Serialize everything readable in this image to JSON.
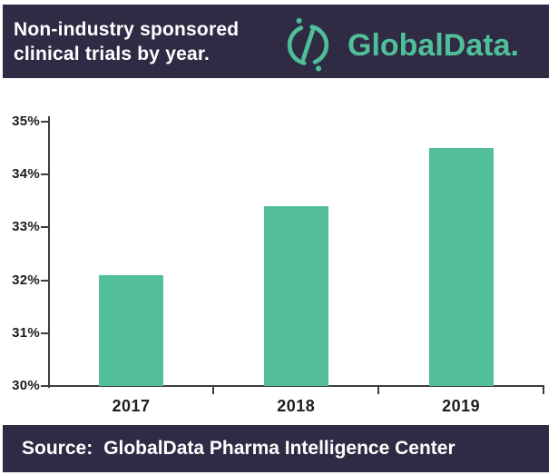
{
  "header": {
    "title_line1": "Non-industry sponsored",
    "title_line2": "clinical trials by year.",
    "brand_name": "GlobalData.",
    "bg_color": "#302b45",
    "title_color": "#ffffff",
    "brand_color": "#4fbf99",
    "logo_icon": "globaldata-circle-slash-icon"
  },
  "chart_data": {
    "type": "bar",
    "title": "Non-industry sponsored clinical trials by year",
    "categories": [
      "2017",
      "2018",
      "2019"
    ],
    "values": [
      32.1,
      33.4,
      34.5
    ],
    "value_unit": "%",
    "xlabel": "",
    "ylabel": "",
    "ylim": [
      30,
      35
    ],
    "ytick_step": 1,
    "ytick_labels": [
      "30%",
      "31%",
      "32%",
      "33%",
      "34%",
      "35%"
    ],
    "bar_color": "#52bf98",
    "axis_color": "#3d3d3d",
    "grid": false,
    "legend": false,
    "background": "#ffffff"
  },
  "footer": {
    "source_label": "Source:",
    "source_text": "GlobalData Pharma Intelligence Center",
    "bg_color": "#302b45",
    "text_color": "#ffffff"
  }
}
